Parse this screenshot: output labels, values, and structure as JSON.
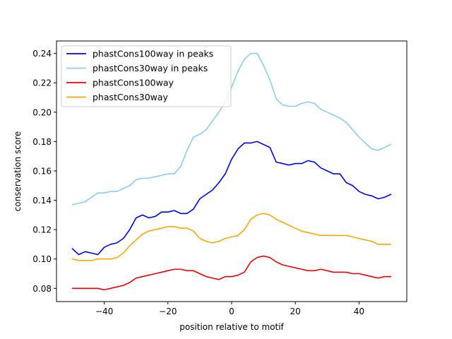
{
  "chart_data": {
    "type": "line",
    "xlabel": "position relative to motif",
    "ylabel": "conservation score",
    "xlim": [
      -55,
      55
    ],
    "ylim": [
      0.071,
      0.2485
    ],
    "xticks": [
      -40,
      -20,
      0,
      20,
      40
    ],
    "yticks": [
      0.08,
      0.1,
      0.12,
      0.14,
      0.16,
      0.18,
      0.2,
      0.22,
      0.24
    ],
    "grid": false,
    "legend_position": "upper-left",
    "x": [
      -50,
      -48,
      -46,
      -44,
      -42,
      -40,
      -38,
      -36,
      -34,
      -32,
      -30,
      -28,
      -26,
      -24,
      -22,
      -20,
      -18,
      -16,
      -14,
      -12,
      -10,
      -8,
      -6,
      -4,
      -2,
      0,
      2,
      4,
      6,
      8,
      10,
      12,
      14,
      16,
      18,
      20,
      22,
      24,
      26,
      28,
      30,
      32,
      34,
      36,
      38,
      40,
      42,
      44,
      46,
      48,
      50
    ],
    "series": [
      {
        "name": "phastCons100way in peaks",
        "color": "#0000ee",
        "values": [
          0.107,
          0.103,
          0.105,
          0.104,
          0.103,
          0.108,
          0.11,
          0.111,
          0.114,
          0.12,
          0.128,
          0.13,
          0.128,
          0.129,
          0.132,
          0.132,
          0.133,
          0.131,
          0.131,
          0.134,
          0.141,
          0.144,
          0.147,
          0.152,
          0.158,
          0.168,
          0.175,
          0.179,
          0.179,
          0.18,
          0.178,
          0.176,
          0.166,
          0.165,
          0.164,
          0.165,
          0.165,
          0.167,
          0.166,
          0.162,
          0.16,
          0.158,
          0.158,
          0.152,
          0.15,
          0.146,
          0.144,
          0.143,
          0.141,
          0.142,
          0.144
        ]
      },
      {
        "name": "phastCons30way in peaks",
        "color": "#87ceeb",
        "values": [
          0.137,
          0.138,
          0.139,
          0.142,
          0.145,
          0.145,
          0.146,
          0.146,
          0.148,
          0.15,
          0.154,
          0.155,
          0.155,
          0.156,
          0.157,
          0.158,
          0.158,
          0.163,
          0.174,
          0.183,
          0.185,
          0.188,
          0.194,
          0.2,
          0.207,
          0.217,
          0.228,
          0.236,
          0.24,
          0.24,
          0.232,
          0.222,
          0.209,
          0.205,
          0.204,
          0.204,
          0.206,
          0.207,
          0.206,
          0.202,
          0.2,
          0.198,
          0.196,
          0.193,
          0.188,
          0.183,
          0.179,
          0.175,
          0.174,
          0.176,
          0.178
        ]
      },
      {
        "name": "phastCons100way",
        "color": "#ee0000",
        "values": [
          0.08,
          0.08,
          0.08,
          0.08,
          0.08,
          0.079,
          0.08,
          0.081,
          0.082,
          0.084,
          0.087,
          0.088,
          0.089,
          0.09,
          0.091,
          0.092,
          0.093,
          0.093,
          0.092,
          0.092,
          0.09,
          0.088,
          0.087,
          0.086,
          0.088,
          0.088,
          0.089,
          0.091,
          0.098,
          0.101,
          0.102,
          0.101,
          0.098,
          0.096,
          0.095,
          0.094,
          0.093,
          0.092,
          0.092,
          0.093,
          0.092,
          0.091,
          0.091,
          0.091,
          0.09,
          0.09,
          0.089,
          0.088,
          0.087,
          0.088,
          0.088
        ]
      },
      {
        "name": "phastCons30way",
        "color": "#ffa500",
        "values": [
          0.1,
          0.099,
          0.099,
          0.099,
          0.1,
          0.1,
          0.1,
          0.101,
          0.104,
          0.109,
          0.113,
          0.117,
          0.119,
          0.12,
          0.121,
          0.122,
          0.122,
          0.121,
          0.121,
          0.119,
          0.114,
          0.112,
          0.111,
          0.112,
          0.114,
          0.115,
          0.116,
          0.12,
          0.127,
          0.13,
          0.131,
          0.13,
          0.127,
          0.125,
          0.123,
          0.121,
          0.119,
          0.118,
          0.117,
          0.116,
          0.116,
          0.116,
          0.116,
          0.116,
          0.115,
          0.114,
          0.113,
          0.112,
          0.11,
          0.11,
          0.11
        ]
      }
    ]
  }
}
